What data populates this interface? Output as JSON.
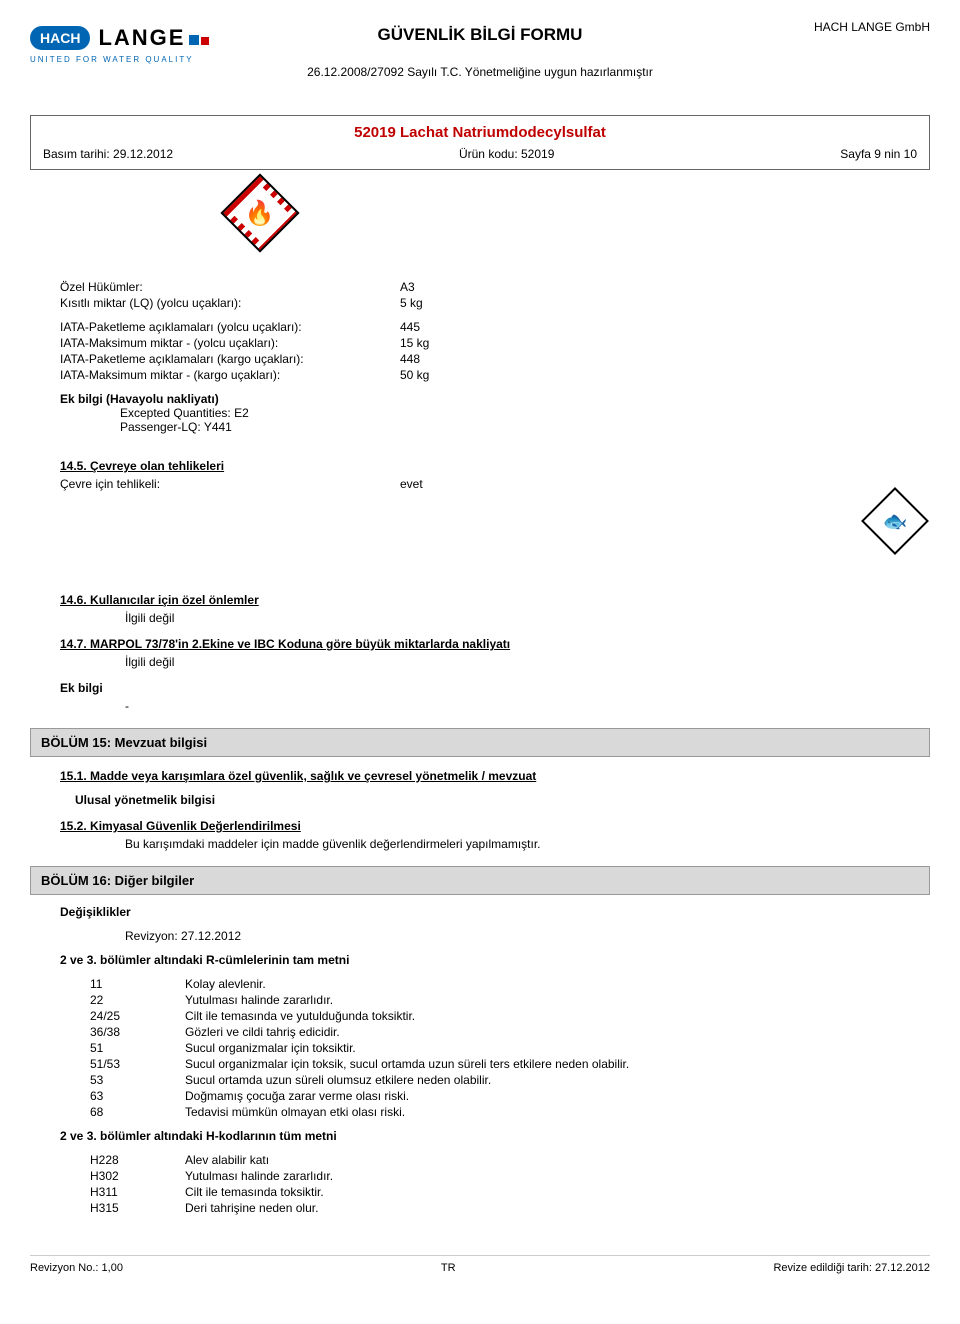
{
  "header": {
    "logo": {
      "hach": "HACH",
      "lange": "LANGE",
      "tagline": "UNITED FOR WATER QUALITY"
    },
    "docTitle": "GÜVENLİK BİLGİ FORMU",
    "regulation": "26.12.2008/27092 Sayılı T.C. Yönetmeliğine uygun hazırlanmıştır",
    "company": "HACH LANGE GmbH"
  },
  "productBox": {
    "name": "52019 Lachat Natriumdodecylsulfat",
    "printDate": "Basım tarihi: 29.12.2012",
    "code": "Ürün kodu: 52019",
    "page": "Sayfa 9 nin 10"
  },
  "special": {
    "rows": [
      {
        "label": "Özel Hükümler:",
        "value": "A3"
      },
      {
        "label": "Kısıtlı miktar (LQ) (yolcu uçakları):",
        "value": "5 kg"
      }
    ],
    "iata": [
      {
        "label": "IATA-Paketleme açıklamaları (yolcu uçakları):",
        "value": "445"
      },
      {
        "label": "IATA-Maksimum miktar - (yolcu uçakları):",
        "value": "15 kg"
      },
      {
        "label": "IATA-Paketleme açıklamaları (kargo uçakları):",
        "value": "448"
      },
      {
        "label": "IATA-Maksimum miktar - (kargo uçakları):",
        "value": "50 kg"
      }
    ],
    "ekBilgiTitle": "Ek bilgi (Havayolu nakliyatı)",
    "ekBilgi": [
      "Excepted Quantities: E2",
      "Passenger-LQ: Y441"
    ]
  },
  "s145": {
    "title": "14.5. Çevreye olan tehlikeleri",
    "label": "Çevre için tehlikeli:",
    "value": "evet"
  },
  "s146": {
    "title": "14.6. Kullanıcılar için özel önlemler",
    "text": "İlgili değil"
  },
  "s147": {
    "title": "14.7. MARPOL 73/78'in 2.Ekine ve IBC Koduna göre büyük miktarlarda nakliyatı",
    "text": "İlgili değil",
    "ekBilgiLabel": "Ek bilgi",
    "ekBilgiVal": "-"
  },
  "section15": {
    "header": "BÖLÜM 15: Mevzuat bilgisi",
    "s151": {
      "title": "15.1. Madde veya karışımlara özel güvenlik, sağlık ve çevresel yönetmelik / mevzuat",
      "sub": "Ulusal yönetmelik bilgisi"
    },
    "s152": {
      "title": "15.2. Kimyasal Güvenlik Değerlendirilmesi",
      "text": "Bu karışımdaki maddeler için madde güvenlik değerlendirmeleri yapılmamıştır."
    }
  },
  "section16": {
    "header": "BÖLÜM 16: Diğer bilgiler",
    "changesTitle": "Değişiklikler",
    "revision": "Revizyon: 27.12.2012",
    "rPhrasesTitle": "2 ve 3. bölümler altındaki R-cümlelerinin tam metni",
    "rPhrases": [
      {
        "code": "11",
        "text": "Kolay alevlenir."
      },
      {
        "code": "22",
        "text": "Yutulması halinde zararlıdır."
      },
      {
        "code": "24/25",
        "text": "Cilt ile temasında ve yutulduğunda toksiktir."
      },
      {
        "code": "36/38",
        "text": "Gözleri ve cildi tahriş edicidir."
      },
      {
        "code": "51",
        "text": "Sucul organizmalar için toksiktir."
      },
      {
        "code": "51/53",
        "text": "Sucul organizmalar için toksik, sucul ortamda uzun süreli ters etkilere neden olabilir."
      },
      {
        "code": "53",
        "text": "Sucul ortamda uzun süreli olumsuz etkilere neden olabilir."
      },
      {
        "code": "63",
        "text": "Doğmamış çocuğa zarar verme olası riski."
      },
      {
        "code": "68",
        "text": "Tedavisi mümkün olmayan etki olası riski."
      }
    ],
    "hPhrasesTitle": "2 ve 3. bölümler altındaki H-kodlarının tüm metni",
    "hPhrases": [
      {
        "code": "H228",
        "text": "Alev alabilir katı"
      },
      {
        "code": "H302",
        "text": "Yutulması halinde zararlıdır."
      },
      {
        "code": "H311",
        "text": "Cilt ile temasında toksiktir."
      },
      {
        "code": "H315",
        "text": "Deri tahrişine neden olur."
      }
    ]
  },
  "footer": {
    "rev": "Revizyon No.: 1,00",
    "lang": "TR",
    "date": "Revize edildiği tarih: 27.12.2012"
  }
}
